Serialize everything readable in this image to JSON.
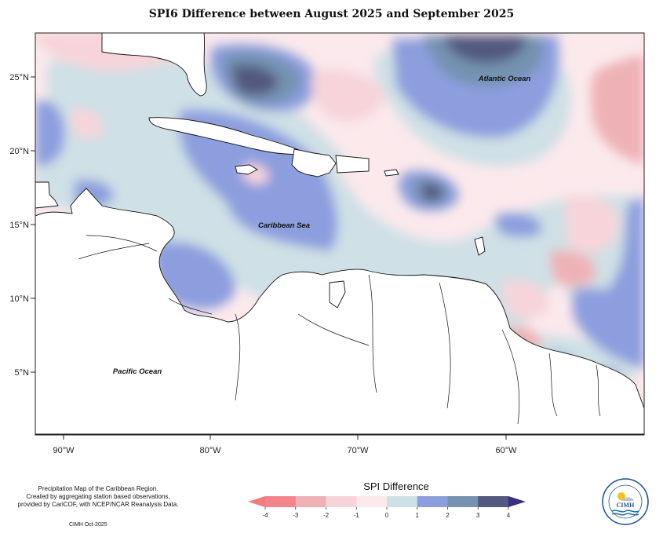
{
  "title": "SPI6 Difference between August 2025 and September 2025",
  "map": {
    "lon_ticks": [
      "90°W",
      "80°W",
      "70°W",
      "60°W"
    ],
    "lat_ticks": [
      "25°N",
      "20°N",
      "15°N",
      "10°N",
      "5°N"
    ],
    "labels": {
      "atlantic": "Atlantic Ocean",
      "caribbean": "Caribbean Sea",
      "pacific": "Pacific Ocean"
    }
  },
  "footnote": {
    "line1": "Precipitation Map of the Caribbean Region.",
    "line2": "Created by aggregating station based observations,",
    "line3": "provided by CariCOF, with NCEP/NCAR Reanalysis Data."
  },
  "credit": "CIMH Oct-2025",
  "legend": {
    "title": "SPI Difference",
    "ticks": [
      "-4",
      "-3",
      "-2",
      "-1",
      "0",
      "1",
      "2",
      "3",
      "4"
    ],
    "colors": [
      "#f2858c",
      "#eeb2b6",
      "#f6d4d9",
      "#fbe9ec",
      "#cfe0e6",
      "#8c9ede",
      "#7592b0",
      "#53597f"
    ],
    "arrow_low": "#f47a80",
    "arrow_high": "#3a2f80"
  },
  "logo": {
    "text": "CIMH",
    "ring_text": "Caribbean Institute for Meteorology and Hydrology"
  }
}
